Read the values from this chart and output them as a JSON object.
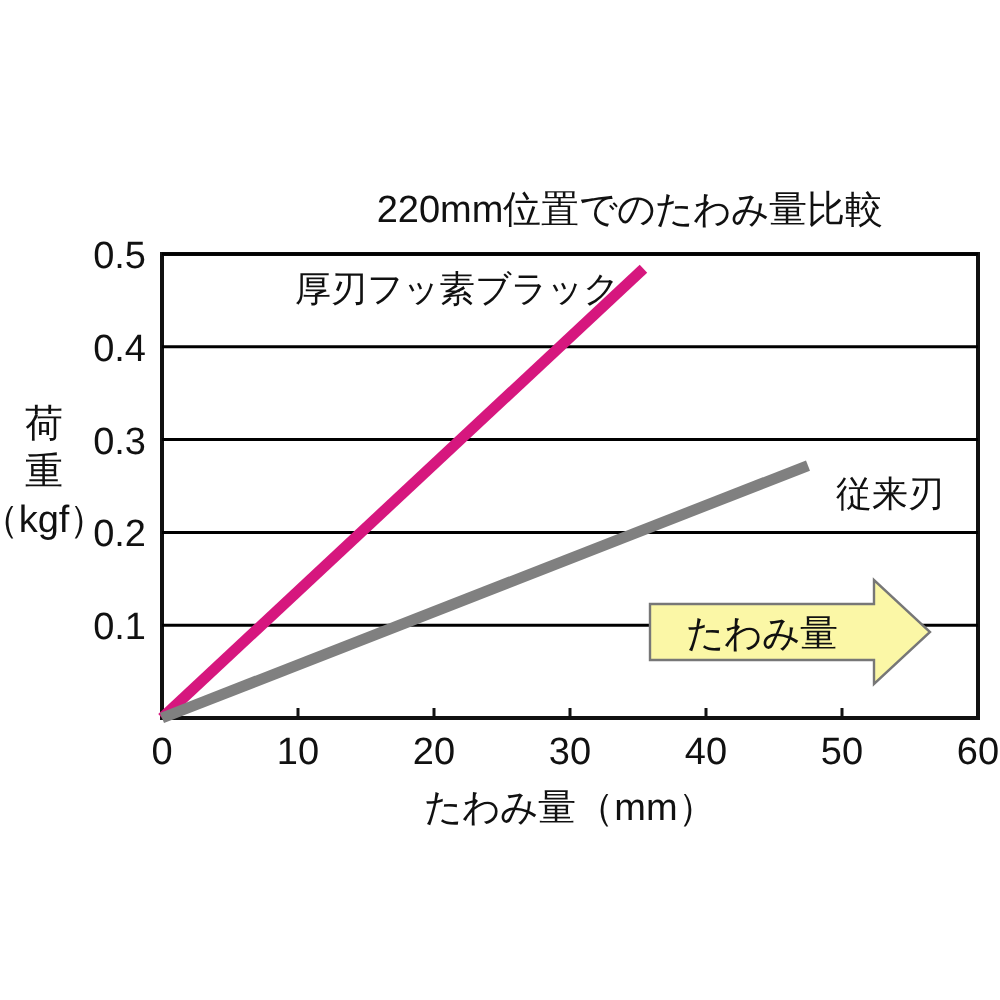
{
  "chart_data": {
    "type": "line",
    "title": "220mm位置でのたわみ量比較",
    "xlabel": "たわみ量（mm）",
    "ylabel": "荷重（kgf）",
    "series": [
      {
        "name": "厚刃フッ素ブラック",
        "color": "#d6177e",
        "x": [
          0,
          35.4
        ],
        "values": [
          0,
          0.484
        ]
      },
      {
        "name": "従来刃",
        "color": "#808080",
        "x": [
          0,
          47.5
        ],
        "values": [
          0,
          0.272
        ]
      }
    ],
    "xlim": [
      0,
      60
    ],
    "xticks": [
      0,
      10,
      20,
      30,
      40,
      50,
      60
    ],
    "ylim": [
      0,
      0.5
    ],
    "yticks": [
      0.1,
      0.2,
      0.3,
      0.4,
      0.5
    ],
    "grid": "y",
    "annotations": [
      "たわみ量"
    ]
  }
}
